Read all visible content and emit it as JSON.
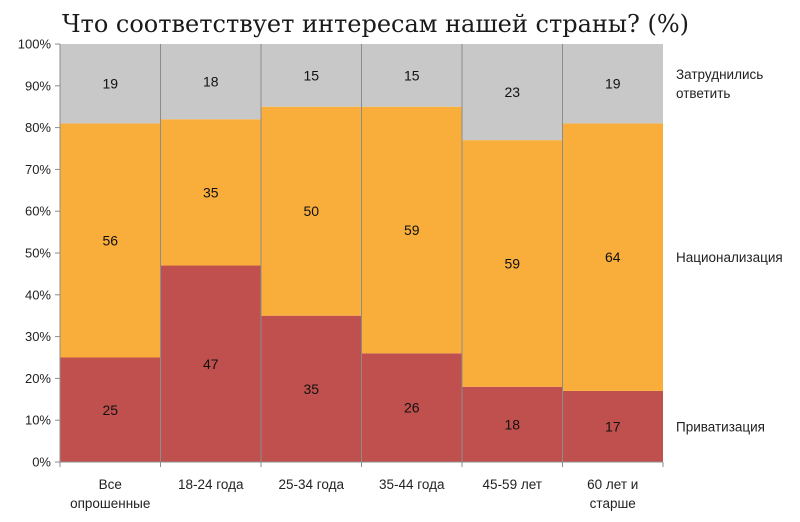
{
  "chart_data": {
    "type": "bar",
    "stacked": true,
    "title": "Что соответствует интересам нашей страны? (%)",
    "ylim": [
      0,
      100
    ],
    "yticks": [
      "0%",
      "10%",
      "20%",
      "30%",
      "40%",
      "50%",
      "60%",
      "70%",
      "80%",
      "90%",
      "100%"
    ],
    "categories": [
      [
        "Все",
        "опрошенные"
      ],
      [
        "18-24 года"
      ],
      [
        "25-34 года"
      ],
      [
        "35-44 года"
      ],
      [
        "45-59 лет"
      ],
      [
        "60 лет и",
        "старше"
      ]
    ],
    "series": [
      {
        "name": "Приватизация",
        "color": "#C0504D",
        "values": [
          25,
          47,
          35,
          26,
          18,
          17
        ]
      },
      {
        "name": "Национализация",
        "color": "#F9AE3B",
        "values": [
          56,
          35,
          50,
          59,
          59,
          64
        ]
      },
      {
        "name": "Затруднились ответить",
        "color": "#C8C8C8",
        "values": [
          19,
          18,
          15,
          15,
          23,
          19
        ]
      }
    ],
    "legend_labels": [
      {
        "series": "Приватизация",
        "lines": [
          "Приватизация"
        ]
      },
      {
        "series": "Национализация",
        "lines": [
          "Национализация"
        ]
      },
      {
        "series": "Затруднились ответить",
        "lines": [
          "Затруднились",
          "ответить"
        ]
      }
    ],
    "grid": false,
    "legend_placement": "right"
  }
}
